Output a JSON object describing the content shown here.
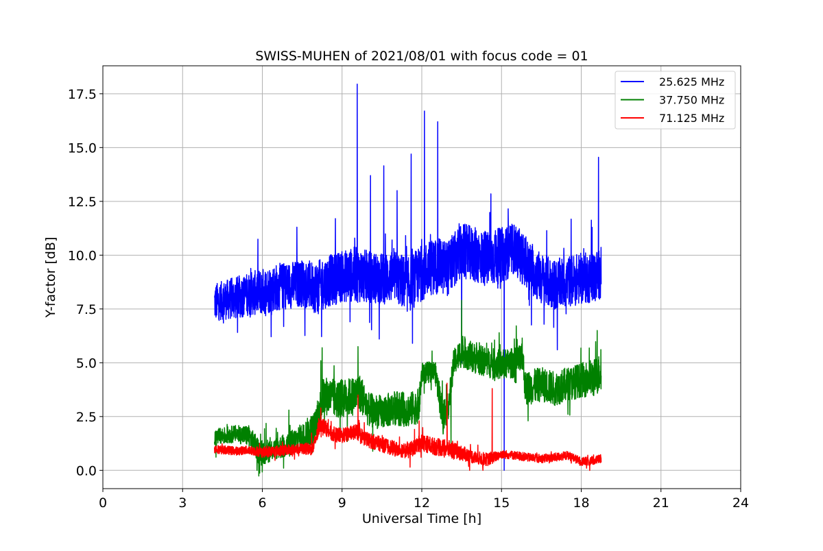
{
  "chart_data": {
    "type": "line",
    "title": "SWISS-MUHEN of 2021/08/01 with focus code = 01",
    "xlabel": "Universal Time [h]",
    "ylabel": "Y-factor [dB]",
    "xlim": [
      0,
      24
    ],
    "ylim": [
      -0.85,
      18.8
    ],
    "xticks": [
      0,
      3,
      6,
      9,
      12,
      15,
      18,
      21,
      24
    ],
    "xtick_labels": [
      "0",
      "3",
      "6",
      "9",
      "12",
      "15",
      "18",
      "21",
      "24"
    ],
    "yticks": [
      0,
      2.5,
      5,
      7.5,
      10,
      12.5,
      15,
      17.5
    ],
    "ytick_labels": [
      "0.0",
      "2.5",
      "5.0",
      "7.5",
      "10.0",
      "12.5",
      "15.0",
      "17.5"
    ],
    "grid": true,
    "legend_position": "top-right",
    "series": [
      {
        "name": "25.625 MHz",
        "color": "#0000ff",
        "x": [
          4.2,
          4.5,
          5.0,
          5.5,
          6.0,
          6.5,
          7.0,
          7.5,
          8.0,
          8.5,
          9.0,
          9.5,
          10.0,
          10.5,
          11.0,
          11.5,
          12.0,
          12.5,
          13.0,
          13.5,
          14.0,
          14.5,
          15.0,
          15.5,
          16.0,
          16.5,
          17.0,
          17.5,
          18.0,
          18.5,
          18.75
        ],
        "y": [
          7.8,
          7.9,
          8.0,
          8.2,
          8.3,
          8.5,
          8.6,
          8.7,
          8.5,
          8.8,
          9.0,
          9.1,
          9.0,
          8.9,
          9.0,
          8.6,
          9.2,
          9.5,
          9.4,
          10.2,
          10.0,
          9.8,
          10.0,
          10.3,
          9.5,
          8.9,
          8.6,
          8.8,
          8.9,
          9.0,
          9.2
        ],
        "band": [
          0.9,
          0.9,
          1.0,
          1.0,
          1.1,
          1.1,
          1.1,
          1.1,
          1.2,
          1.2,
          1.2,
          1.3,
          1.2,
          1.2,
          1.2,
          1.3,
          1.3,
          1.3,
          1.3,
          1.3,
          1.3,
          1.3,
          1.3,
          1.2,
          1.2,
          1.2,
          1.2,
          1.2,
          1.2,
          1.2,
          1.2
        ],
        "spikes": [
          [
            9.57,
            17.95
          ],
          [
            10.07,
            13.7
          ],
          [
            10.57,
            14.15
          ],
          [
            11.07,
            13.0
          ],
          [
            11.6,
            14.7
          ],
          [
            12.1,
            16.7
          ],
          [
            12.6,
            16.2
          ],
          [
            14.6,
            12.85
          ],
          [
            15.25,
            12.15
          ],
          [
            18.65,
            14.55
          ],
          [
            8.75,
            11.7
          ],
          [
            7.3,
            11.3
          ]
        ],
        "dips": [
          [
            10.4,
            6.1
          ],
          [
            11.65,
            5.9
          ],
          [
            13.5,
            5.0
          ],
          [
            15.1,
            0.0
          ],
          [
            17.1,
            5.6
          ],
          [
            9.3,
            6.9
          ]
        ]
      },
      {
        "name": "37.750 MHz",
        "color": "#008000",
        "x": [
          4.2,
          4.5,
          5.0,
          5.5,
          5.9,
          6.5,
          7.0,
          7.5,
          8.0,
          8.3,
          8.8,
          9.3,
          9.7,
          10.0,
          10.5,
          11.0,
          11.5,
          11.9,
          12.0,
          12.5,
          12.8,
          13.0,
          13.2,
          13.5,
          14.0,
          14.5,
          15.0,
          15.5,
          15.8,
          15.9,
          16.5,
          17.0,
          17.5,
          18.0,
          18.5,
          18.75
        ],
        "y": [
          1.5,
          1.6,
          1.7,
          1.6,
          0.8,
          1.0,
          1.2,
          1.6,
          2.0,
          3.5,
          3.3,
          3.4,
          3.6,
          2.8,
          2.7,
          2.9,
          2.8,
          3.0,
          4.5,
          4.6,
          2.5,
          3.0,
          5.0,
          5.5,
          5.2,
          5.0,
          4.9,
          5.0,
          5.2,
          3.8,
          4.0,
          3.8,
          4.0,
          4.2,
          4.3,
          4.6
        ],
        "band": [
          0.4,
          0.4,
          0.4,
          0.5,
          0.6,
          0.5,
          0.6,
          0.6,
          0.8,
          0.9,
          0.9,
          0.9,
          0.9,
          0.8,
          0.8,
          0.8,
          0.8,
          0.8,
          0.5,
          0.5,
          0.9,
          0.6,
          0.6,
          0.7,
          0.7,
          0.7,
          0.7,
          0.7,
          0.7,
          0.8,
          0.8,
          0.8,
          0.8,
          0.8,
          0.9,
          0.9
        ],
        "spikes": [
          [
            8.25,
            5.7
          ],
          [
            9.6,
            5.75
          ],
          [
            13.5,
            7.9
          ],
          [
            18.6,
            6.5
          ],
          [
            7.0,
            2.8
          ]
        ],
        "dips": [
          [
            5.8,
            0.0
          ],
          [
            6.8,
            0.1
          ],
          [
            16.0,
            2.3
          ],
          [
            13.1,
            1.2
          ],
          [
            17.5,
            2.6
          ]
        ]
      },
      {
        "name": "71.125 MHz",
        "color": "#ff0000",
        "x": [
          4.2,
          4.5,
          5.0,
          5.5,
          6.0,
          6.5,
          7.0,
          7.5,
          7.9,
          8.2,
          8.6,
          9.0,
          9.5,
          10.0,
          10.5,
          11.0,
          11.5,
          12.0,
          12.5,
          13.0,
          13.5,
          14.0,
          14.5,
          15.0,
          15.5,
          16.0,
          16.5,
          17.0,
          17.5,
          18.0,
          18.5,
          18.75
        ],
        "y": [
          1.0,
          0.95,
          0.9,
          0.95,
          0.85,
          0.9,
          0.95,
          1.0,
          1.0,
          2.2,
          1.7,
          1.6,
          1.8,
          1.4,
          1.2,
          1.0,
          0.9,
          1.3,
          1.1,
          1.0,
          0.8,
          0.6,
          0.5,
          0.75,
          0.7,
          0.6,
          0.55,
          0.6,
          0.7,
          0.4,
          0.45,
          0.55
        ],
        "band": [
          0.2,
          0.2,
          0.2,
          0.2,
          0.25,
          0.25,
          0.25,
          0.25,
          0.3,
          0.35,
          0.35,
          0.35,
          0.35,
          0.35,
          0.35,
          0.35,
          0.35,
          0.4,
          0.4,
          0.4,
          0.35,
          0.3,
          0.3,
          0.2,
          0.2,
          0.2,
          0.2,
          0.2,
          0.2,
          0.2,
          0.2,
          0.2
        ],
        "spikes": [
          [
            9.6,
            3.5
          ],
          [
            12.95,
            4.05
          ],
          [
            14.65,
            3.8
          ],
          [
            8.2,
            2.9
          ],
          [
            11.9,
            2.3
          ]
        ],
        "dips": [
          [
            13.8,
            0.0
          ],
          [
            14.3,
            0.0
          ],
          [
            18.2,
            0.1
          ]
        ]
      }
    ]
  }
}
